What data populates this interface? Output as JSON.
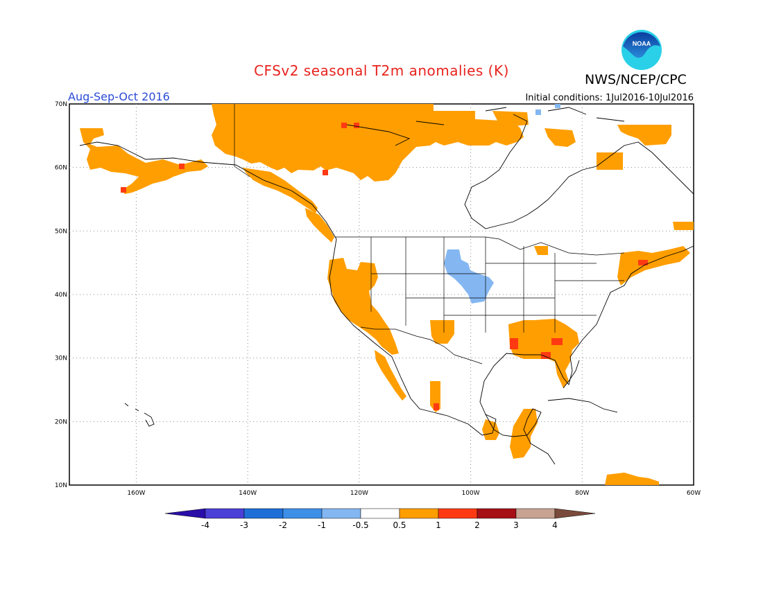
{
  "header": {
    "title": "CFSv2 seasonal T2m anomalies (K)",
    "organization": "NWS/NCEP/CPC",
    "season": "Aug-Sep-Oct 2016",
    "initial_conditions": "Initial conditions: 1Jul2016-10Jul2016",
    "logo_text": "NOAA"
  },
  "map": {
    "lon_range": [
      -172,
      -60
    ],
    "lat_range": [
      10,
      70
    ],
    "lat_labels": [
      "70N",
      "60N",
      "50N",
      "40N",
      "30N",
      "20N",
      "10N"
    ],
    "lon_labels": [
      "160W",
      "140W",
      "120W",
      "100W",
      "80W",
      "60W"
    ],
    "colors": {
      "pos1": "#ff9e00",
      "pos2": "#ff3a12",
      "neg1": "#84b7f2",
      "coast": "#000000",
      "grid": "#888888"
    }
  },
  "colorbar": {
    "labels": [
      "-4",
      "-3",
      "-2",
      "-1",
      "-0.5",
      "0.5",
      "1",
      "2",
      "3",
      "4"
    ],
    "colors": [
      "#2a0ea8",
      "#4a3fd6",
      "#1f6fd8",
      "#3d8fe8",
      "#84b7f2",
      "#ffffff",
      "#ff9e00",
      "#ff3a12",
      "#a50f15",
      "#c9a392",
      "#7a4b3c"
    ]
  }
}
